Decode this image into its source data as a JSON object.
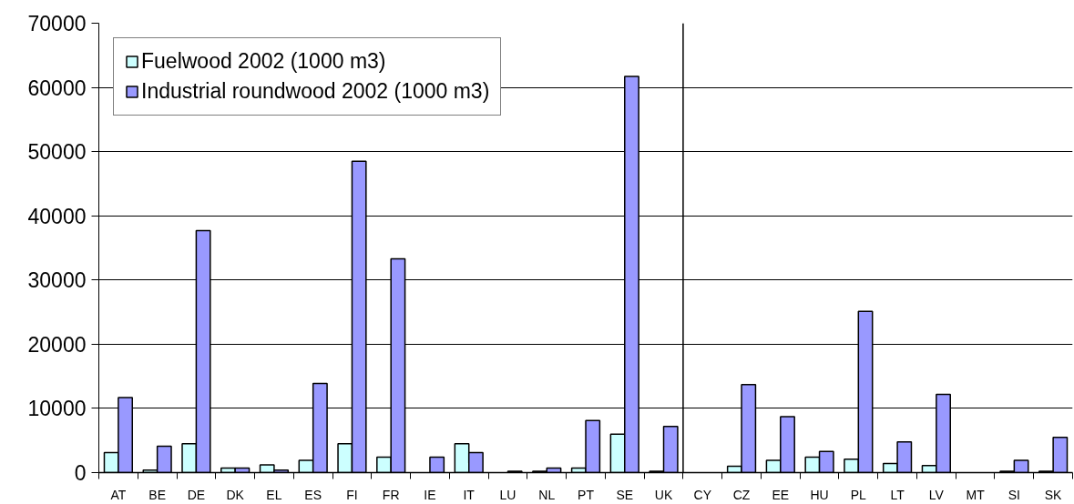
{
  "chart_data": {
    "type": "bar",
    "categories": [
      "AT",
      "BE",
      "DE",
      "DK",
      "EL",
      "ES",
      "FI",
      "FR",
      "IE",
      "IT",
      "LU",
      "NL",
      "PT",
      "SE",
      "UK",
      "CY",
      "CZ",
      "EE",
      "HU",
      "PL",
      "LT",
      "LV",
      "MT",
      "SI",
      "SK"
    ],
    "series": [
      {
        "name": "Fuelwood 2002 (1000 m3)",
        "color": "#ccffff",
        "values": [
          3100,
          400,
          4500,
          700,
          1200,
          1900,
          4500,
          2400,
          null,
          4500,
          null,
          200,
          700,
          6000,
          200,
          null,
          1000,
          1900,
          2400,
          2100,
          1400,
          1100,
          null,
          200,
          200
        ]
      },
      {
        "name": "Industrial roundwood 2002 (1000 m3)",
        "color": "#9999ff",
        "values": [
          11700,
          4100,
          37700,
          700,
          400,
          13900,
          48500,
          33300,
          2400,
          3100,
          200,
          700,
          8100,
          61700,
          7200,
          null,
          13700,
          8700,
          3300,
          25100,
          4800,
          12200,
          null,
          1900,
          5500
        ]
      }
    ],
    "ylim": [
      0,
      70000
    ],
    "yticks": [
      0,
      10000,
      20000,
      30000,
      40000,
      50000,
      60000,
      70000
    ],
    "grid": "y",
    "legend": "top left",
    "ref_lines": [
      {
        "axis": "x",
        "value": "CY",
        "color": "#000000"
      }
    ]
  }
}
